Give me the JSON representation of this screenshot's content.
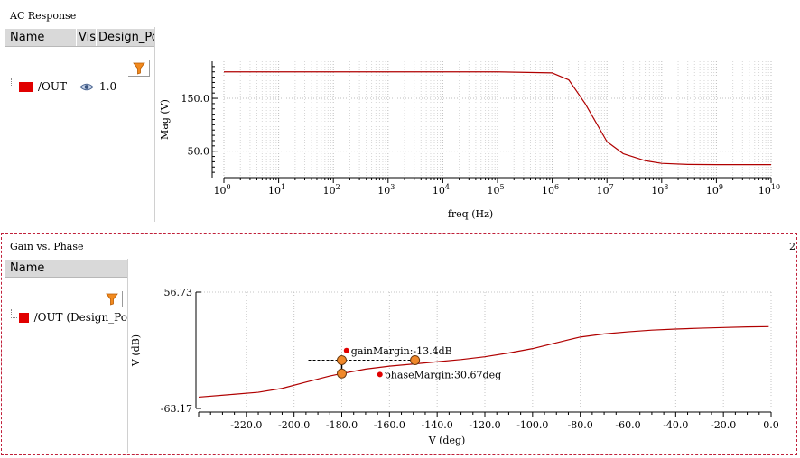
{
  "top_panel": {
    "title": "AC Response",
    "columns": [
      "Name",
      "Vis",
      "Design_Po"
    ],
    "signal": {
      "name": "/OUT",
      "visibility_value": "1.0",
      "color": "#e10000"
    }
  },
  "bottom_panel": {
    "title": "Gain vs. Phase",
    "index": "2",
    "columns": [
      "Name"
    ],
    "signal": {
      "name": "/OUT (Design_Po",
      "color": "#e10000"
    }
  },
  "icons": {
    "filter": "filter-icon",
    "eye": "eye-icon"
  },
  "chart_data": [
    {
      "type": "line",
      "title": "",
      "xlabel": "freq (Hz)",
      "ylabel": "Mag (V)",
      "x_scale": "log",
      "xlim": [
        1,
        10000000000
      ],
      "x_ticks": [
        {
          "base": "10",
          "exp": "0"
        },
        {
          "base": "10",
          "exp": "1"
        },
        {
          "base": "10",
          "exp": "2"
        },
        {
          "base": "10",
          "exp": "3"
        },
        {
          "base": "10",
          "exp": "4"
        },
        {
          "base": "10",
          "exp": "5"
        },
        {
          "base": "10",
          "exp": "6"
        },
        {
          "base": "10",
          "exp": "7"
        },
        {
          "base": "10",
          "exp": "8"
        },
        {
          "base": "10",
          "exp": "9"
        },
        {
          "base": "10",
          "exp": "10"
        }
      ],
      "y_ticks": [
        "150.0",
        "50.0"
      ],
      "ylim": [
        0,
        220
      ],
      "grid": true,
      "series": [
        {
          "name": "/OUT",
          "color": "#b00000",
          "x": [
            1,
            100000,
            1000000,
            2000000,
            4000000,
            10000000,
            20000000,
            50000000,
            100000000,
            300000000,
            1000000000,
            10000000000
          ],
          "y": [
            200,
            200,
            198,
            185,
            140,
            68,
            45,
            32,
            27,
            25,
            24.5,
            24.5
          ]
        }
      ]
    },
    {
      "type": "line",
      "title": "",
      "xlabel": "V (deg)",
      "ylabel": "V (dB)",
      "xlim": [
        -240,
        0
      ],
      "ylim": [
        -63.17,
        56.73
      ],
      "x_ticks": [
        "-220.0",
        "-200.0",
        "-180.0",
        "-160.0",
        "-140.0",
        "-120.0",
        "-100.0",
        "-80.0",
        "-60.0",
        "-40.0",
        "-20.0",
        "0.0"
      ],
      "y_ticks": [
        "56.73",
        "-63.17"
      ],
      "grid": true,
      "series": [
        {
          "name": "/OUT (Design_Po",
          "color": "#b00000",
          "x": [
            -240,
            -225,
            -215,
            -205,
            -195,
            -185,
            -180,
            -170,
            -160,
            -150,
            -140,
            -130,
            -120,
            -110,
            -100,
            -90,
            -85,
            -80,
            -70,
            -60,
            -50,
            -40,
            -30,
            -20,
            -10,
            -1
          ],
          "y": [
            -51.5,
            -48.5,
            -46.5,
            -42.5,
            -36,
            -29.8,
            -27.2,
            -22.6,
            -19.6,
            -17.4,
            -15.1,
            -12.8,
            -9.9,
            -6.0,
            -1.5,
            4.5,
            7.5,
            10.4,
            13.6,
            15.8,
            17.5,
            18.6,
            19.5,
            20.2,
            20.8,
            21.1
          ]
        }
      ],
      "markers": [
        {
          "label": "gainMargin:-13.4dB",
          "x": -178,
          "y": -3.5,
          "color": "#e10000"
        },
        {
          "label": "phaseMargin:30.67deg",
          "x": -164,
          "y": -28.2,
          "color": "#e10000"
        }
      ],
      "margin_points": [
        {
          "x": -180,
          "y": -13.4
        },
        {
          "x": -180,
          "y": -27.2
        },
        {
          "x": -149.3,
          "y": -13.4
        }
      ],
      "point_color": "#f0882a"
    }
  ]
}
